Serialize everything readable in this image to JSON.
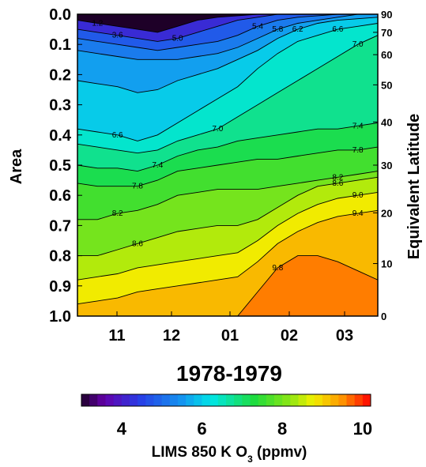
{
  "chart_data": {
    "type": "heatmap",
    "title": "1978-1979",
    "xlabel": "",
    "ylabel": "Area",
    "y2label": "Equivalent Latitude",
    "x_ticks": [
      "11",
      "12",
      "01",
      "02",
      "03"
    ],
    "y_ticks": [
      "0.0",
      "0.1",
      "0.2",
      "0.3",
      "0.4",
      "0.5",
      "0.6",
      "0.7",
      "0.8",
      "0.9",
      "1.0"
    ],
    "ylim": [
      0.0,
      1.0
    ],
    "y2_ticks": [
      "90",
      "70",
      "60",
      "50",
      "40",
      "30",
      "20",
      "10",
      "0"
    ],
    "y2_tick_areas": [
      0.0,
      0.06,
      0.134,
      0.234,
      0.357,
      0.5,
      0.658,
      0.826,
      1.0
    ],
    "colorbar": {
      "label_main": "LIMS 850 K O",
      "label_sub": "3",
      "label_units": "(ppmv)",
      "ticks": [
        "4",
        "6",
        "8",
        "10"
      ],
      "tick_values": [
        4,
        6,
        8,
        10
      ],
      "range": [
        3.0,
        10.2
      ]
    },
    "contour_labels": [
      "1.2",
      "3.6",
      "5.0",
      "5.4",
      "5.8",
      "6.2",
      "6.6",
      "7.0",
      "6.6",
      "7.0",
      "7.4",
      "7.8",
      "7.4",
      "7.8",
      "8.2",
      "8.6",
      "9.0",
      "9.4",
      "8.2",
      "8.6",
      "9.8"
    ],
    "series": [
      {
        "value": 4.4,
        "areas": [
          0.02,
          0.03,
          0.04,
          0.05,
          0.06,
          0.04,
          0.02,
          0.01,
          0.005,
          0.0,
          0.0,
          0.0,
          0.0,
          0.0,
          0.0,
          0.0
        ]
      },
      {
        "value": 5.0,
        "areas": [
          0.05,
          0.06,
          0.07,
          0.08,
          0.09,
          0.08,
          0.06,
          0.04,
          0.02,
          0.01,
          0.0,
          0.0,
          0.0,
          0.0,
          0.0,
          0.0
        ]
      },
      {
        "value": 5.4,
        "areas": [
          0.08,
          0.09,
          0.1,
          0.11,
          0.12,
          0.11,
          0.1,
          0.09,
          0.07,
          0.04,
          0.02,
          0.01,
          0.005,
          0.0,
          0.0,
          0.0
        ]
      },
      {
        "value": 5.8,
        "areas": [
          0.12,
          0.13,
          0.14,
          0.15,
          0.15,
          0.15,
          0.14,
          0.13,
          0.11,
          0.08,
          0.05,
          0.03,
          0.02,
          0.01,
          0.0,
          0.0
        ]
      },
      {
        "value": 6.2,
        "areas": [
          0.22,
          0.23,
          0.24,
          0.26,
          0.25,
          0.22,
          0.2,
          0.18,
          0.15,
          0.12,
          0.08,
          0.05,
          0.03,
          0.02,
          0.015,
          0.01
        ]
      },
      {
        "value": 6.6,
        "areas": [
          0.38,
          0.39,
          0.4,
          0.42,
          0.4,
          0.36,
          0.32,
          0.28,
          0.24,
          0.18,
          0.13,
          0.09,
          0.07,
          0.05,
          0.04,
          0.03
        ]
      },
      {
        "value": 7.0,
        "areas": [
          0.43,
          0.44,
          0.45,
          0.46,
          0.45,
          0.42,
          0.4,
          0.38,
          0.34,
          0.3,
          0.26,
          0.22,
          0.18,
          0.14,
          0.1,
          0.07
        ]
      },
      {
        "value": 7.4,
        "areas": [
          0.5,
          0.51,
          0.51,
          0.52,
          0.5,
          0.47,
          0.45,
          0.44,
          0.42,
          0.41,
          0.4,
          0.39,
          0.38,
          0.38,
          0.37,
          0.36
        ]
      },
      {
        "value": 7.8,
        "areas": [
          0.56,
          0.57,
          0.57,
          0.57,
          0.55,
          0.52,
          0.51,
          0.5,
          0.49,
          0.48,
          0.48,
          0.47,
          0.46,
          0.45,
          0.45,
          0.44
        ]
      },
      {
        "value": 8.2,
        "areas": [
          0.68,
          0.68,
          0.66,
          0.65,
          0.63,
          0.6,
          0.59,
          0.58,
          0.58,
          0.58,
          0.57,
          0.56,
          0.55,
          0.54,
          0.53,
          0.52
        ]
      },
      {
        "value": 8.6,
        "areas": [
          0.8,
          0.8,
          0.78,
          0.76,
          0.74,
          0.72,
          0.71,
          0.7,
          0.7,
          0.68,
          0.64,
          0.6,
          0.57,
          0.56,
          0.55,
          0.54
        ]
      },
      {
        "value": 9.0,
        "areas": [
          0.88,
          0.87,
          0.86,
          0.84,
          0.83,
          0.82,
          0.81,
          0.8,
          0.79,
          0.75,
          0.7,
          0.66,
          0.63,
          0.61,
          0.6,
          0.59
        ]
      },
      {
        "value": 9.4,
        "areas": [
          0.96,
          0.95,
          0.94,
          0.92,
          0.91,
          0.9,
          0.89,
          0.88,
          0.87,
          0.82,
          0.76,
          0.72,
          0.69,
          0.67,
          0.66,
          0.65
        ]
      },
      {
        "value": 9.8,
        "areas": [
          1.01,
          1.01,
          1.01,
          1.01,
          1.01,
          1.01,
          1.01,
          1.01,
          1.0,
          0.92,
          0.84,
          0.8,
          0.8,
          0.82,
          0.85,
          0.88
        ]
      }
    ],
    "background_value": 10.1,
    "grid": false,
    "legend": "bottom colorbar"
  }
}
